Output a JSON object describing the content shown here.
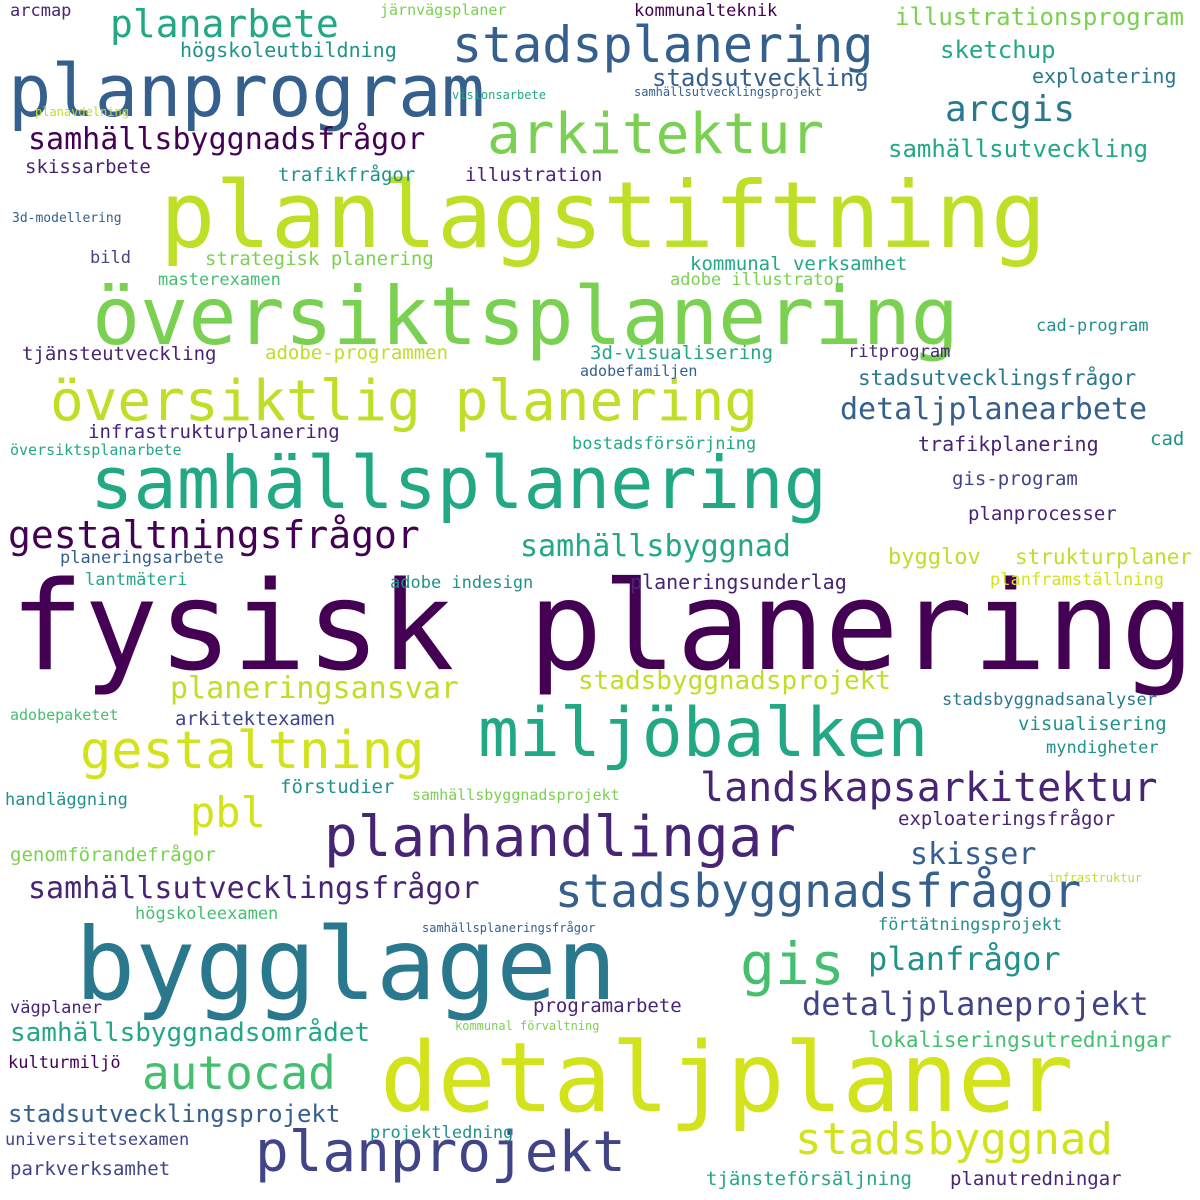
{
  "palette": {
    "c1": "#440154",
    "c2": "#482475",
    "c3": "#414487",
    "c4": "#355f8d",
    "c5": "#2a788e",
    "c6": "#21918c",
    "c7": "#22a884",
    "c8": "#44bf70",
    "c9": "#7ad151",
    "c10": "#bddf26",
    "c11": "#d2e21b"
  },
  "words": [
    "fysisk planering",
    "planlagstiftning",
    "översiktsplanering",
    "bygglagen",
    "detaljplaner",
    "samhällsplanering",
    "planprogram",
    "översiktlig planering",
    "miljöbalken",
    "stadsplanering",
    "arkitektur",
    "planhandlingar",
    "planprojekt",
    "stadsbyggnadsfrågor",
    "gestaltning",
    "gestaltningsfrågor",
    "gis",
    "planarbete",
    "stadsbyggnad",
    "landskapsarkitektur",
    "autocad",
    "samhällsbyggnadsfrågor",
    "samhällsutvecklingsfrågor",
    "detaljplanearbete",
    "arcgis",
    "detaljplaneprojekt",
    "samhällsbyggnad",
    "planeringsansvar",
    "planfrågor",
    "stadsbyggnadsprojekt",
    "samhällsbyggnadsområdet",
    "stadsutvecklingsprojekt",
    "stadsutveckling",
    "pbl",
    "samhällsutveckling",
    "skisser",
    "illustrationsprogram",
    "sketchup",
    "stadsutvecklingsfrågor",
    "lokaliseringsutredningar",
    "högskoleutbildning",
    "exploatering",
    "planeringsunderlag",
    "bygglov",
    "strukturplaner",
    "infrastrukturplanering",
    "skissarbete",
    "trafikplanering",
    "tjänsteutveckling",
    "kommunal verksamhet",
    "3d-visualisering",
    "adobe-programmen",
    "gis-program",
    "planprocesser",
    "illustration",
    "trafikfrågor",
    "strategisk planering",
    "masterexamen",
    "adobe illustrator",
    "exploateringsfrågor",
    "genomförandefrågor",
    "förstudier",
    "arkitektexamen",
    "visualisering",
    "myndigheter",
    "handläggning",
    "stadsbyggnadsanalyser",
    "bostadsförsörjning",
    "lantmäteri",
    "adobe indesign",
    "planeringsarbete",
    "planframställning",
    "högskoleexamen",
    "förtätningsprojekt",
    "programarbete",
    "vägplaner",
    "kulturmiljö",
    "universitetsexamen",
    "parkverksamhet",
    "projektledning",
    "tjänsteförsäljning",
    "planutredningar",
    "arcmap",
    "järnvägsplaner",
    "kommunalteknik",
    "cad-program",
    "ritprogram",
    "adobefamiljen",
    "cad",
    "bild",
    "översiktsplanarbete",
    "adobepaketet",
    "samhällsbyggnadsprojekt",
    "3d-modellering",
    "planavdelning",
    "visionsarbete",
    "samhällsutvecklingsprojekt",
    "infrastruktur",
    "samhällsplaneringsfrågor",
    "kommunal förvaltning"
  ]
}
